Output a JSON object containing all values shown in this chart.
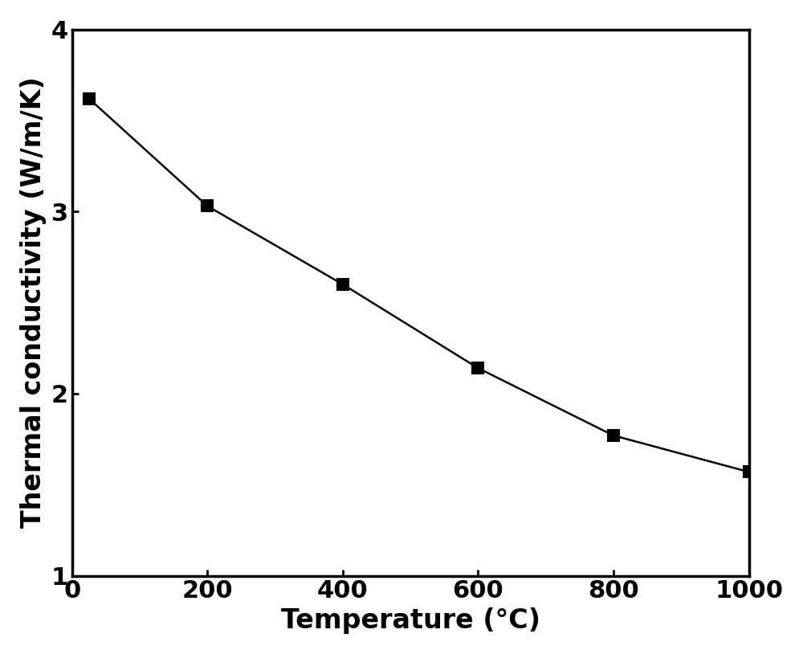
{
  "x": [
    25,
    200,
    400,
    600,
    800,
    1000
  ],
  "y": [
    3.62,
    3.03,
    2.6,
    2.14,
    1.77,
    1.57
  ],
  "xlabel": "Temperature (°C)",
  "ylabel": "Thermal conductivity (W/m/K)",
  "xlim": [
    0,
    1000
  ],
  "ylim": [
    1,
    4
  ],
  "xticks": [
    0,
    200,
    400,
    600,
    800,
    1000
  ],
  "yticks": [
    1,
    2,
    3,
    4
  ],
  "line_color": "#000000",
  "marker_color": "#000000",
  "marker": "s",
  "marker_size": 10,
  "line_width": 1.8,
  "xlabel_fontsize": 24,
  "ylabel_fontsize": 24,
  "tick_fontsize": 22,
  "axis_label_fontweight": "bold",
  "tick_label_fontweight": "bold",
  "background_color": "#ffffff",
  "spine_linewidth": 2.5
}
